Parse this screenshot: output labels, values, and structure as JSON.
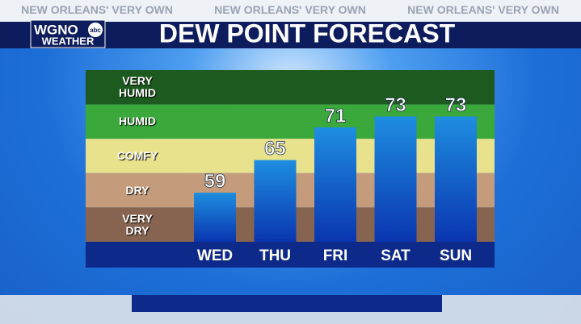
{
  "header": {
    "tagline": "NEW ORLEANS' VERY OWN",
    "logo": "WGNO",
    "network": "abc",
    "logo_sub": "WEATHER"
  },
  "chart_data": {
    "type": "bar",
    "title": "DEW POINT FORECAST",
    "categories": [
      "WED",
      "THU",
      "FRI",
      "SAT",
      "SUN"
    ],
    "values": [
      59,
      65,
      71,
      73,
      73
    ],
    "ylim": [
      50,
      81.5
    ],
    "bands": [
      "VERY HUMID",
      "HUMID",
      "COMFY",
      "DRY",
      "VERY DRY"
    ],
    "band_colors": [
      "#1d5a1f",
      "#3aa83a",
      "#e9e28c",
      "#c49c7c",
      "#876450"
    ],
    "color": "#0f5fc8"
  }
}
